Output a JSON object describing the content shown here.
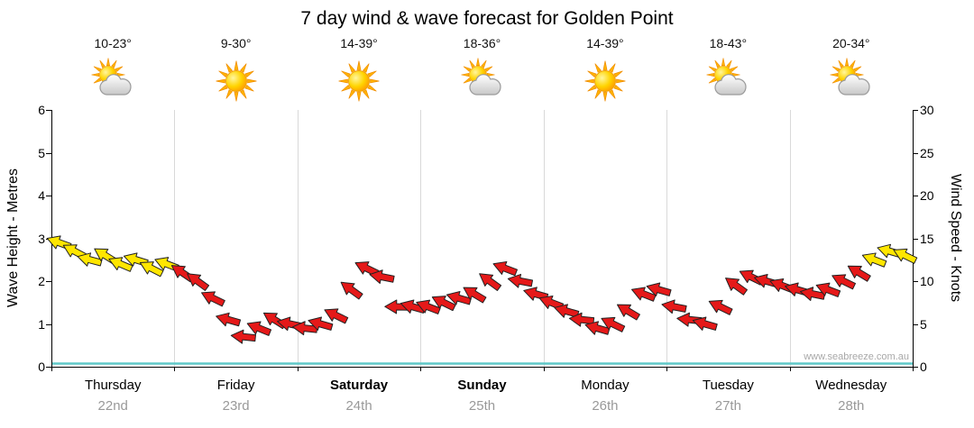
{
  "title": "7 day wind & wave forecast for Golden Point",
  "watermark": "www.seabreeze.com.au",
  "days": [
    {
      "name": "Thursday",
      "date": "22nd",
      "temp": "10-23°",
      "icon": "partly-cloudy",
      "bold": false
    },
    {
      "name": "Friday",
      "date": "23rd",
      "temp": "9-30°",
      "icon": "sunny",
      "bold": false
    },
    {
      "name": "Saturday",
      "date": "24th",
      "temp": "14-39°",
      "icon": "sunny",
      "bold": true
    },
    {
      "name": "Sunday",
      "date": "25th",
      "temp": "18-36°",
      "icon": "partly-cloudy",
      "bold": true
    },
    {
      "name": "Monday",
      "date": "26th",
      "temp": "14-39°",
      "icon": "sunny",
      "bold": false
    },
    {
      "name": "Tuesday",
      "date": "27th",
      "temp": "18-43°",
      "icon": "partly-cloudy",
      "bold": false
    },
    {
      "name": "Wednesday",
      "date": "28th",
      "temp": "20-34°",
      "icon": "partly-cloudy",
      "bold": false
    }
  ],
  "chart_data": {
    "type": "scatter",
    "title": "7 day wind & wave forecast for Golden Point",
    "x_categories": [
      "Thursday",
      "Friday",
      "Saturday",
      "Sunday",
      "Monday",
      "Tuesday",
      "Wednesday"
    ],
    "y_left": {
      "label": "Wave Height - Metres",
      "range": [
        0,
        6
      ],
      "ticks": [
        0,
        1,
        2,
        3,
        4,
        5,
        6
      ]
    },
    "y_right": {
      "label": "Wind Speed - Knots",
      "range": [
        0,
        30
      ],
      "ticks": [
        0,
        5,
        10,
        15,
        20,
        25,
        30
      ]
    },
    "grid": "vertical-day-boundaries",
    "points_per_day": 8,
    "series": [
      {
        "name": "Wind speed & direction arrows",
        "unit": "knots",
        "knots": [
          14.5,
          13.5,
          12.5,
          13,
          12,
          12.5,
          11.5,
          12,
          11,
          10,
          8,
          5.5,
          3.5,
          4.5,
          5.5,
          5,
          4.5,
          5,
          6,
          9,
          11.5,
          10.5,
          7,
          7,
          7,
          7.5,
          8,
          8.5,
          10,
          11.5,
          10,
          8.5,
          7.5,
          6.5,
          5.5,
          4.5,
          5,
          6.5,
          8.5,
          9,
          7,
          5.5,
          5,
          7,
          9.5,
          10.5,
          10,
          9.5,
          9,
          8.5,
          9,
          10,
          11,
          12.5,
          13.5,
          13
        ],
        "dir_deg": [
          200,
          208,
          195,
          212,
          203,
          197,
          207,
          201,
          214,
          216,
          206,
          196,
          186,
          202,
          212,
          192,
          186,
          196,
          206,
          216,
          206,
          191,
          181,
          196,
          201,
          206,
          196,
          211,
          216,
          201,
          191,
          196,
          201,
          196,
          186,
          196,
          206,
          211,
          201,
          196,
          191,
          186,
          196,
          206,
          216,
          206,
          196,
          201,
          196,
          191,
          201,
          206,
          211,
          201,
          196,
          206
        ],
        "colors": [
          "Y",
          "Y",
          "Y",
          "Y",
          "Y",
          "Y",
          "Y",
          "Y",
          "R",
          "R",
          "R",
          "R",
          "R",
          "R",
          "R",
          "R",
          "R",
          "R",
          "R",
          "R",
          "R",
          "R",
          "R",
          "R",
          "R",
          "R",
          "R",
          "R",
          "R",
          "R",
          "R",
          "R",
          "R",
          "R",
          "R",
          "R",
          "R",
          "R",
          "R",
          "R",
          "R",
          "R",
          "R",
          "R",
          "R",
          "R",
          "R",
          "R",
          "R",
          "R",
          "R",
          "R",
          "R",
          "Y",
          "Y",
          "Y"
        ]
      },
      {
        "name": "Wave height line",
        "unit": "m",
        "approx_value": 0.1,
        "color": "#5FC8C8"
      }
    ]
  },
  "colors": {
    "arrow_Y": "#FFE600",
    "arrow_R": "#E51919",
    "arrow_outline": "#222222",
    "grid": "#D9D9D9",
    "axis": "#000000",
    "wave_line": "#5FC8C8",
    "date_text": "#999999",
    "watermark": "#A8A8A8"
  }
}
